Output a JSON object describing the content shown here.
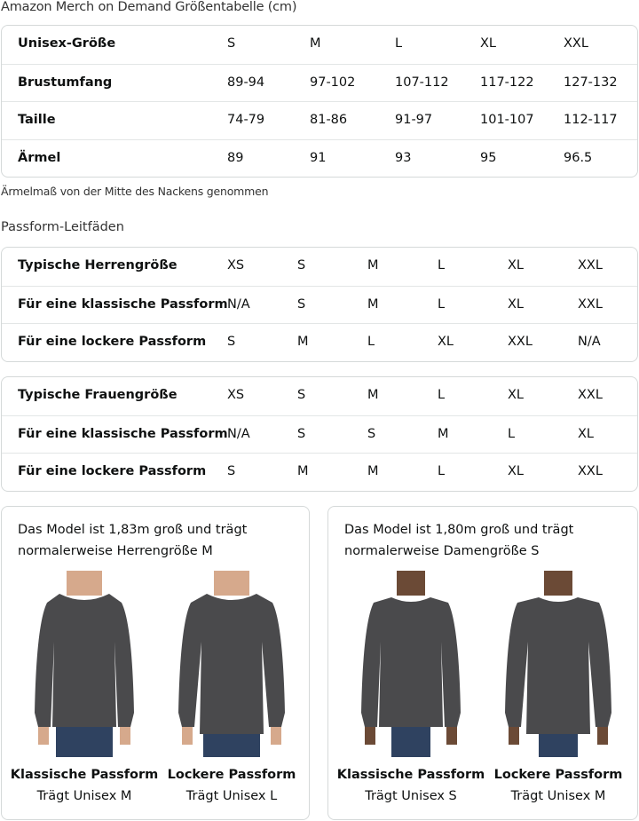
{
  "title": "Amazon Merch on Demand Größentabelle (cm)",
  "size_table": {
    "headers": [
      "Unisex-Größe",
      "S",
      "M",
      "L",
      "XL",
      "XXL"
    ],
    "rows": [
      [
        "Brustumfang",
        "89-94",
        "97-102",
        "107-112",
        "117-122",
        "127-132"
      ],
      [
        "Taille",
        "74-79",
        "81-86",
        "91-97",
        "101-107",
        "112-117"
      ],
      [
        "Ärmel",
        "89",
        "91",
        "93",
        "95",
        "96.5"
      ]
    ]
  },
  "note": "Ärmelmaß von der Mitte des Nackens genommen",
  "fit_guide_title": "Passform-Leitfäden",
  "men_table": [
    [
      "Typische Herrengröße",
      "XS",
      "S",
      "M",
      "L",
      "XL",
      "XXL"
    ],
    [
      "Für eine klassische Passform",
      "N/A",
      "S",
      "M",
      "L",
      "XL",
      "XXL"
    ],
    [
      "Für eine lockere Passform",
      "S",
      "M",
      "L",
      "XL",
      "XXL",
      "N/A"
    ]
  ],
  "women_table": [
    [
      "Typische Frauengröße",
      "XS",
      "S",
      "M",
      "L",
      "XL",
      "XXL"
    ],
    [
      "Für eine klassische Passform",
      "N/A",
      "S",
      "S",
      "M",
      "L",
      "XL"
    ],
    [
      "Für eine lockere Passform",
      "S",
      "M",
      "M",
      "L",
      "XL",
      "XXL"
    ]
  ],
  "cards": [
    {
      "caption": "Das Model ist 1,83m groß und trägt normalerweise Herrengröße M",
      "figures": [
        {
          "name": "Klassische Passform",
          "wears": "Trägt Unisex M"
        },
        {
          "name": "Lockere Passform",
          "wears": "Trägt Unisex L"
        }
      ]
    },
    {
      "caption": "Das Model ist 1,80m groß und trägt normalerweise Damengröße S",
      "figures": [
        {
          "name": "Klassische Passform",
          "wears": "Trägt Unisex S"
        },
        {
          "name": "Lockere Passform",
          "wears": "Trägt Unisex M"
        }
      ]
    }
  ],
  "colors": {
    "sweatshirt": "#4a4a4c",
    "jeans": "#2f4260",
    "border": "#d5d9d9"
  }
}
